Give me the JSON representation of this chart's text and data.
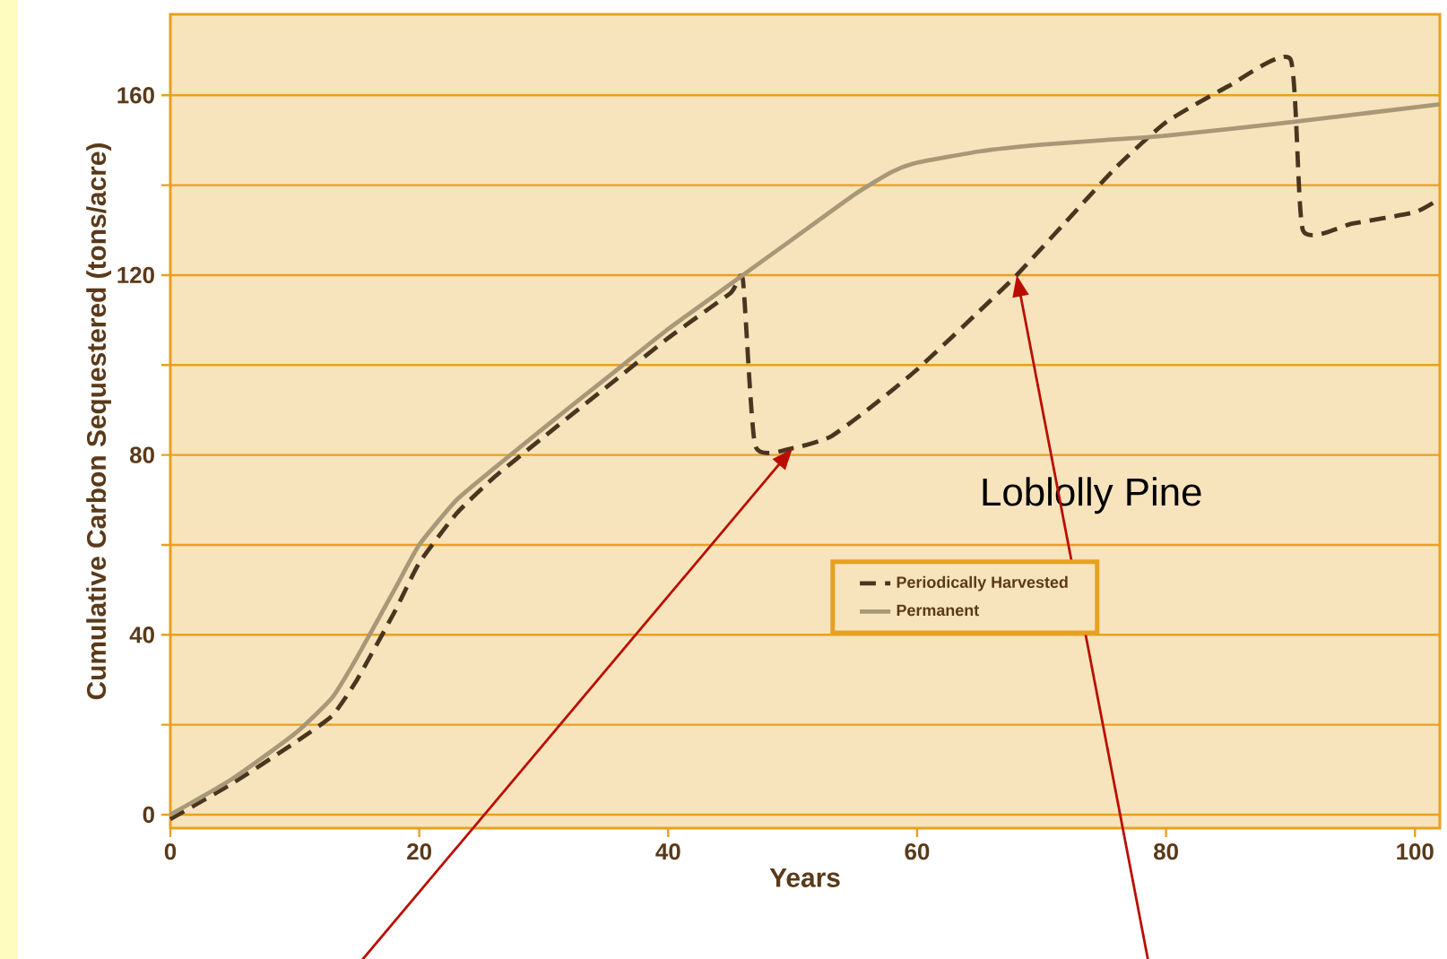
{
  "chart_data": {
    "type": "line",
    "xlabel": "Years",
    "ylabel": "Cumulative Carbon Sequestered (tons/acre)",
    "xlim": [
      0,
      102
    ],
    "ylim": [
      -3,
      178
    ],
    "xticks": [
      0,
      20,
      40,
      60,
      80,
      100
    ],
    "yticks": [
      0,
      {
        "value": 20,
        "label": null
      },
      40,
      {
        "value": 60,
        "label": null
      },
      80,
      {
        "value": 100,
        "label": null
      },
      120,
      {
        "value": 140,
        "label": null
      },
      160
    ],
    "grid": "y",
    "legend": "bottom right",
    "annotations": [
      "Loblolly Pine"
    ],
    "series": [
      {
        "name": "Periodically Harvested",
        "color": "#4a3520",
        "line_style": "dashed",
        "x": [
          0,
          5,
          10,
          13,
          15,
          18,
          20,
          23,
          26,
          30,
          35,
          40,
          45,
          46,
          47,
          50,
          53,
          56,
          60,
          65,
          68,
          72,
          76,
          80,
          85,
          90,
          91,
          95,
          100,
          102
        ],
        "values": [
          -1,
          7,
          16,
          22,
          30,
          45,
          56,
          67,
          75,
          84,
          95,
          106,
          116,
          119,
          82,
          81.5,
          84,
          90,
          99,
          112,
          120,
          132,
          144,
          154,
          162,
          168,
          130,
          131.5,
          134,
          137
        ]
      },
      {
        "name": "Permanent",
        "color": "#a89878",
        "line_style": "solid",
        "x": [
          0,
          5,
          10,
          13,
          15,
          18,
          20,
          23,
          26,
          30,
          35,
          40,
          45,
          50,
          55,
          58,
          60,
          65,
          70,
          75,
          80,
          90,
          102
        ],
        "values": [
          0,
          8,
          18,
          26,
          35,
          50,
          60,
          70,
          77,
          86,
          97,
          108,
          118,
          128,
          138,
          143,
          145,
          147.5,
          149,
          150,
          151,
          154,
          158
        ]
      }
    ]
  }
}
